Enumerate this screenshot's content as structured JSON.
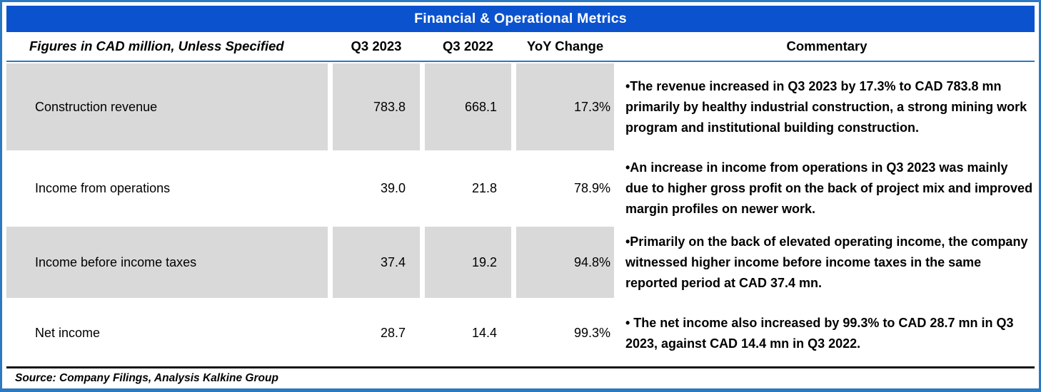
{
  "title": "Financial & Operational Metrics",
  "columns": {
    "metric": "Figures in CAD million, Unless Specified",
    "q3_2023": "Q3 2023",
    "q3_2022": "Q3 2022",
    "yoy": "YoY Change",
    "commentary": "Commentary"
  },
  "rows": [
    {
      "label": "Construction revenue",
      "q3_2023": "783.8",
      "q3_2022": "668.1",
      "yoy": "17.3%",
      "commentary": "•The revenue increased in Q3 2023 by 17.3% to CAD 783.8 mn primarily by healthy industrial construction, a strong mining work program and institutional building construction."
    },
    {
      "label": "Income from operations",
      "q3_2023": "39.0",
      "q3_2022": "21.8",
      "yoy": "78.9%",
      "commentary": "•An increase in income from operations in Q3 2023 was mainly due to higher gross profit on the back of project mix and  improved margin profiles on newer work."
    },
    {
      "label": "Income before income taxes",
      "q3_2023": "37.4",
      "q3_2022": "19.2",
      "yoy": "94.8%",
      "commentary": "•Primarily on the back of elevated operating income, the company witnessed higher income before income taxes in the same reported period at CAD 37.4 mn."
    },
    {
      "label": "Net income",
      "q3_2023": "28.7",
      "q3_2022": "14.4",
      "yoy": "99.3%",
      "commentary": "• The net income also increased by 99.3% to CAD 28.7 mn in Q3 2023, against CAD 14.4 mn in Q3 2022."
    }
  ],
  "source": "Source: Company Filings, Analysis Kalkine Group",
  "colors": {
    "header_bg": "#0B53CE",
    "border": "#2A79C1",
    "row_shade": "#D9D9D9",
    "header_text": "#FFFFFF",
    "body_text": "#000000"
  },
  "chart_data": {
    "type": "table",
    "title": "Financial & Operational Metrics",
    "columns": [
      "Figures in CAD million, Unless Specified",
      "Q3 2023",
      "Q3 2022",
      "YoY Change",
      "Commentary"
    ],
    "rows": [
      [
        "Construction revenue",
        783.8,
        668.1,
        "17.3%",
        "The revenue increased in Q3 2023 by 17.3% to CAD 783.8 mn primarily by healthy industrial construction, a strong mining work program and institutional building construction."
      ],
      [
        "Income from operations",
        39.0,
        21.8,
        "78.9%",
        "An increase in income from operations in Q3 2023 was mainly due to higher gross profit on the back of project mix and improved margin profiles on newer work."
      ],
      [
        "Income before income taxes",
        37.4,
        19.2,
        "94.8%",
        "Primarily on the back of elevated operating income, the company witnessed higher income before income taxes in the same reported period at CAD 37.4 mn."
      ],
      [
        "Net income",
        28.7,
        14.4,
        "99.3%",
        "The net income also increased by 99.3% to CAD 28.7 mn in Q3 2023, against CAD 14.4 mn in Q3 2022."
      ]
    ],
    "source": "Source: Company Filings, Analysis Kalkine Group"
  }
}
